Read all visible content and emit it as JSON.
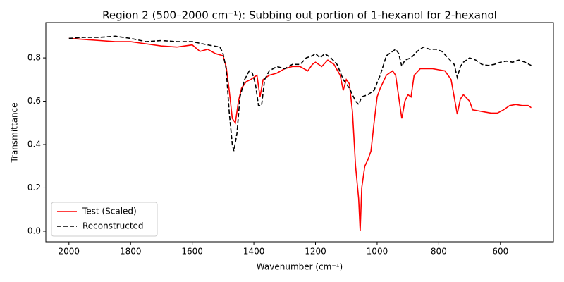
{
  "chart_data": {
    "type": "line",
    "title": "Region 2 (500–2000 cm⁻¹): Subbing out portion of 1-hexanol for 2-hexanol",
    "x_label": "Wavenumber (cm⁻¹)",
    "y_label": "Transmittance",
    "xlim": [
      2075,
      428
    ],
    "ylim": [
      -0.049,
      0.963
    ],
    "xticks": [
      2000,
      1800,
      1600,
      1400,
      1200,
      1000,
      800,
      600
    ],
    "yticks": [
      {
        "value": 0,
        "label": "0.0"
      },
      0.2,
      0.4,
      0.6,
      0.8
    ],
    "grid": false,
    "legend": "lower left",
    "series": [
      {
        "name": "Test (Scaled)",
        "color": "#ff0000",
        "linestyle": "solid",
        "x": [
          2000,
          1950,
          1900,
          1850,
          1800,
          1750,
          1700,
          1650,
          1600,
          1575,
          1550,
          1525,
          1500,
          1490,
          1480,
          1470,
          1460,
          1450,
          1440,
          1425,
          1410,
          1400,
          1390,
          1380,
          1370,
          1350,
          1325,
          1300,
          1275,
          1250,
          1225,
          1210,
          1200,
          1180,
          1160,
          1140,
          1120,
          1110,
          1100,
          1090,
          1080,
          1070,
          1060,
          1055,
          1050,
          1040,
          1030,
          1020,
          1010,
          1000,
          990,
          970,
          950,
          940,
          930,
          920,
          910,
          900,
          890,
          880,
          860,
          840,
          820,
          800,
          780,
          760,
          745,
          740,
          730,
          720,
          700,
          690,
          670,
          650,
          630,
          610,
          590,
          570,
          550,
          530,
          510,
          500
        ],
        "values": [
          0.89,
          0.885,
          0.88,
          0.875,
          0.875,
          0.865,
          0.855,
          0.85,
          0.86,
          0.83,
          0.84,
          0.82,
          0.81,
          0.76,
          0.65,
          0.52,
          0.5,
          0.6,
          0.66,
          0.69,
          0.7,
          0.71,
          0.72,
          0.62,
          0.7,
          0.72,
          0.73,
          0.75,
          0.76,
          0.76,
          0.74,
          0.77,
          0.78,
          0.76,
          0.79,
          0.77,
          0.72,
          0.65,
          0.7,
          0.68,
          0.55,
          0.3,
          0.15,
          0.0,
          0.2,
          0.3,
          0.33,
          0.37,
          0.5,
          0.62,
          0.66,
          0.72,
          0.74,
          0.72,
          0.62,
          0.52,
          0.6,
          0.63,
          0.62,
          0.72,
          0.75,
          0.75,
          0.75,
          0.745,
          0.74,
          0.7,
          0.58,
          0.54,
          0.61,
          0.63,
          0.6,
          0.56,
          0.555,
          0.55,
          0.545,
          0.545,
          0.56,
          0.58,
          0.585,
          0.58,
          0.58,
          0.57
        ]
      },
      {
        "name": "Reconstructed",
        "color": "#000000",
        "linestyle": "dashed",
        "x": [
          2000,
          1950,
          1900,
          1850,
          1800,
          1750,
          1700,
          1650,
          1600,
          1550,
          1510,
          1500,
          1490,
          1480,
          1470,
          1465,
          1455,
          1445,
          1430,
          1415,
          1405,
          1395,
          1385,
          1375,
          1365,
          1350,
          1325,
          1300,
          1275,
          1250,
          1230,
          1210,
          1200,
          1185,
          1170,
          1150,
          1130,
          1110,
          1090,
          1070,
          1060,
          1050,
          1030,
          1010,
          990,
          970,
          950,
          940,
          930,
          920,
          910,
          890,
          870,
          850,
          830,
          810,
          790,
          770,
          750,
          740,
          730,
          720,
          700,
          680,
          660,
          640,
          620,
          600,
          580,
          560,
          540,
          520,
          500
        ],
        "values": [
          0.89,
          0.895,
          0.895,
          0.9,
          0.89,
          0.875,
          0.88,
          0.875,
          0.875,
          0.86,
          0.85,
          0.82,
          0.75,
          0.55,
          0.4,
          0.37,
          0.45,
          0.62,
          0.7,
          0.74,
          0.73,
          0.68,
          0.58,
          0.58,
          0.7,
          0.74,
          0.76,
          0.75,
          0.77,
          0.77,
          0.8,
          0.81,
          0.82,
          0.8,
          0.82,
          0.8,
          0.77,
          0.7,
          0.66,
          0.6,
          0.585,
          0.62,
          0.63,
          0.65,
          0.72,
          0.81,
          0.83,
          0.84,
          0.82,
          0.76,
          0.79,
          0.8,
          0.83,
          0.85,
          0.84,
          0.84,
          0.83,
          0.8,
          0.77,
          0.71,
          0.76,
          0.78,
          0.8,
          0.79,
          0.77,
          0.765,
          0.77,
          0.78,
          0.785,
          0.78,
          0.79,
          0.78,
          0.765
        ]
      }
    ]
  }
}
